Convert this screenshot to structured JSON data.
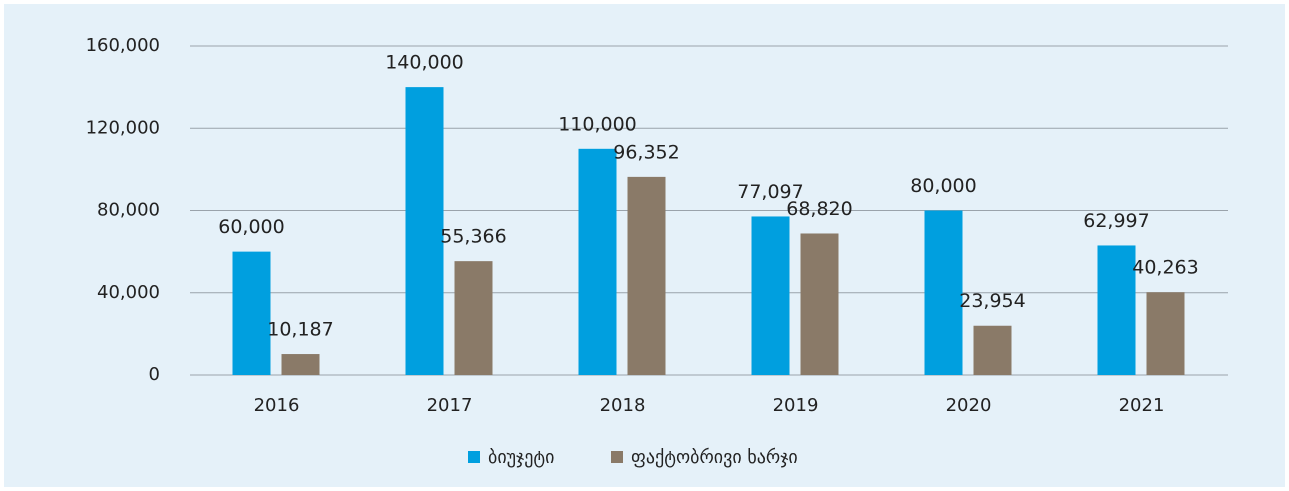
{
  "chart_data": {
    "type": "bar",
    "categories": [
      "2016",
      "2017",
      "2018",
      "2019",
      "2020",
      "2021"
    ],
    "series": [
      {
        "name": "ბიუჯეტი",
        "color": "#009fdf",
        "values": [
          60000,
          140000,
          110000,
          77097,
          80000,
          62997
        ],
        "value_labels": [
          "60,000",
          "140,000",
          "110,000",
          "77,097",
          "80,000",
          "62,997"
        ]
      },
      {
        "name": "ფაქტობრივი ხარჯი",
        "color": "#8a7a68",
        "values": [
          10187,
          55366,
          96352,
          68820,
          23954,
          40263
        ],
        "value_labels": [
          "10,187",
          "55,366",
          "96,352",
          "68,820",
          "23,954",
          "40,263"
        ]
      }
    ],
    "ylim": [
      0,
      160000
    ],
    "yticks": [
      0,
      {
        "value": 40000,
        "label": "40,000"
      },
      {
        "value": 80000,
        "label": "80,000"
      },
      {
        "value": 120000,
        "label": "120,000"
      },
      {
        "value": 160000,
        "label": "160,000"
      }
    ],
    "grid": true,
    "legend": "bottom"
  }
}
